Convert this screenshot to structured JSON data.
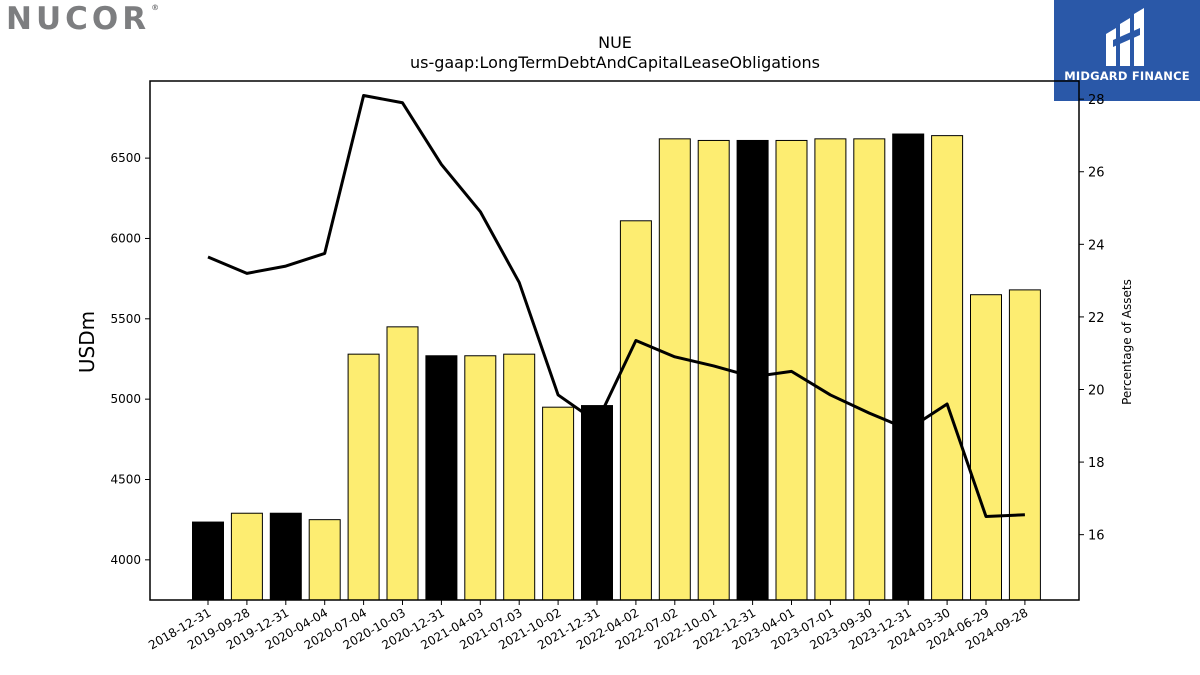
{
  "logos": {
    "company": "NUCOR",
    "company_mark": "®",
    "publisher": "MIDGARD FINANCE",
    "publisher_icon": "midgard-pillars-icon"
  },
  "chart_data": {
    "type": "bar",
    "title": "NUE",
    "subtitle": "us-gaap:LongTermDebtAndCapitalLeaseObligations",
    "ylabel": "USDm",
    "y2label": "Percentage of Assets",
    "ylim": [
      3750,
      6980
    ],
    "y2lim": [
      14.2,
      28.5
    ],
    "yticks": [
      4000,
      4500,
      5000,
      5500,
      6000,
      6500
    ],
    "y2ticks": [
      16,
      18,
      20,
      22,
      24,
      26,
      28
    ],
    "categories": [
      "2018-12-31",
      "2019-09-28",
      "2019-12-31",
      "2020-04-04",
      "2020-07-04",
      "2020-10-03",
      "2020-12-31",
      "2021-04-03",
      "2021-07-03",
      "2021-10-02",
      "2021-12-31",
      "2022-04-02",
      "2022-07-02",
      "2022-10-01",
      "2022-12-31",
      "2023-04-01",
      "2023-07-01",
      "2023-09-30",
      "2023-12-31",
      "2024-03-30",
      "2024-06-29",
      "2024-09-28"
    ],
    "series": [
      {
        "axis": "left",
        "kind": "bar",
        "values": [
          4235,
          4290,
          4290,
          4250,
          5280,
          5450,
          5270,
          5270,
          5280,
          4950,
          4960,
          6110,
          6620,
          6610,
          6610,
          6610,
          6620,
          6620,
          6650,
          6640,
          5650,
          5680
        ]
      },
      {
        "axis": "right",
        "kind": "line",
        "values": [
          23.65,
          23.2,
          23.4,
          23.75,
          28.1,
          27.9,
          26.2,
          24.9,
          22.95,
          19.85,
          19.1,
          21.35,
          20.9,
          20.65,
          20.35,
          20.5,
          19.85,
          19.35,
          18.9,
          19.6,
          16.5,
          16.55
        ]
      }
    ],
    "colors": {
      "annual_bar": "#000000",
      "quarterly_bar": "#fded71",
      "line": "#000000"
    },
    "annual_flags": [
      true,
      false,
      true,
      false,
      false,
      false,
      true,
      false,
      false,
      false,
      true,
      false,
      false,
      false,
      true,
      false,
      false,
      false,
      true,
      false,
      false,
      false
    ],
    "grid": false,
    "legend": "none"
  }
}
